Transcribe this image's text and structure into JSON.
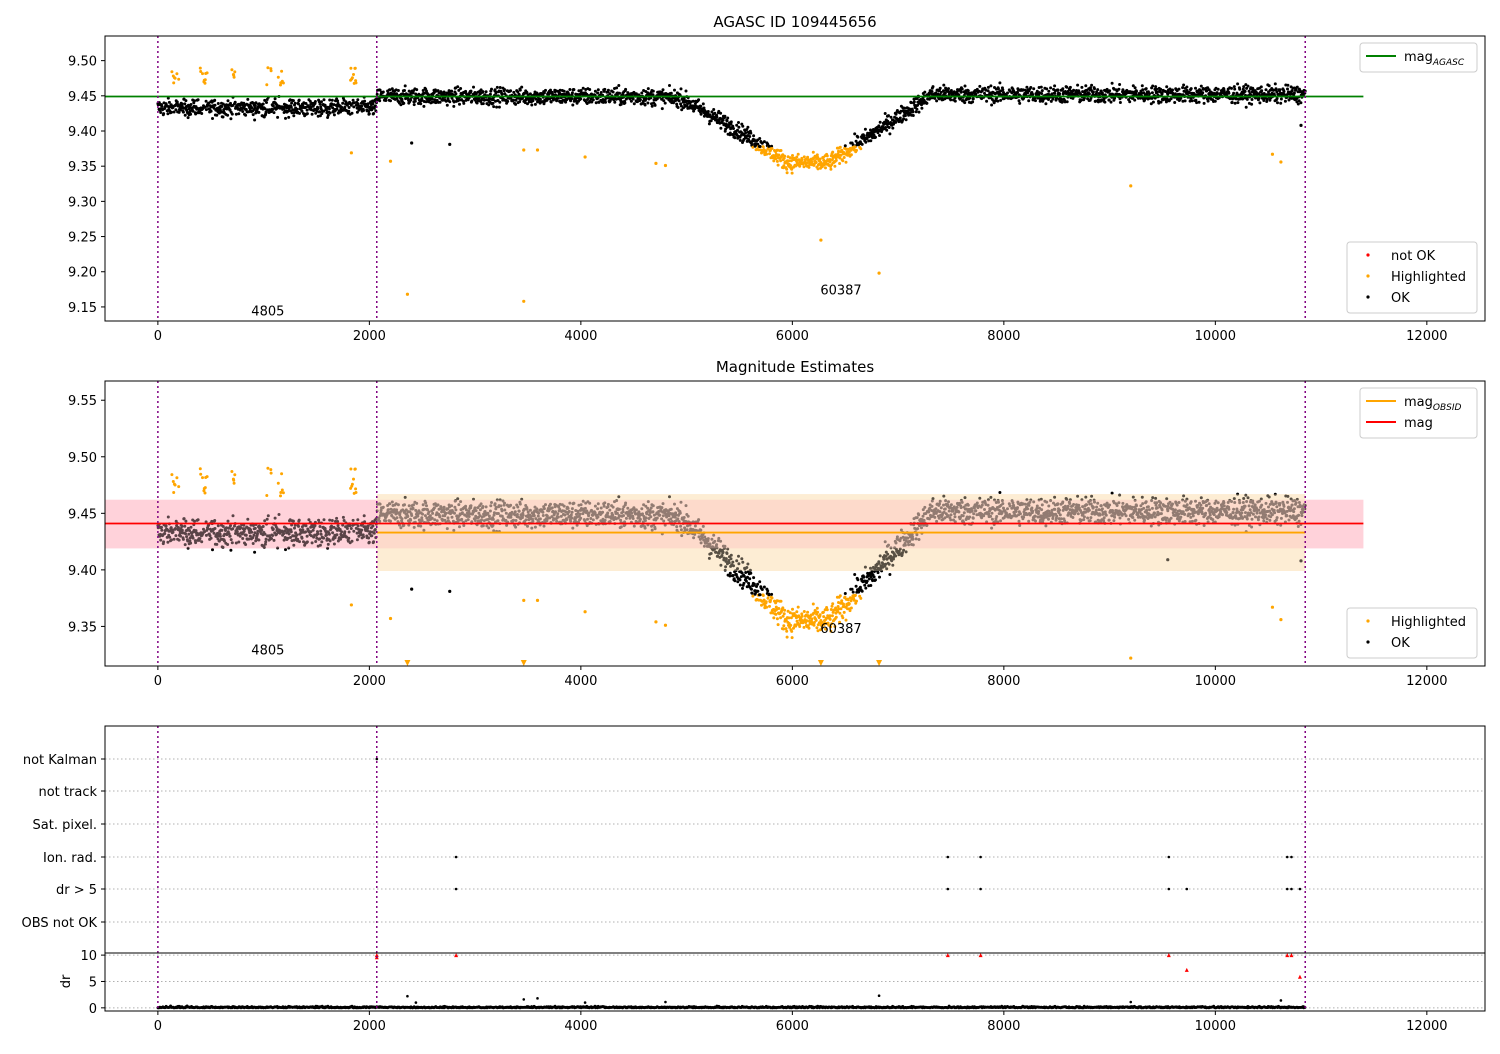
{
  "chart_data": [
    {
      "id": "agasc",
      "type": "scatter",
      "title": "AGASC ID 109445656",
      "xlim": [
        -500,
        12550
      ],
      "ylim": [
        9.13,
        9.535
      ],
      "xticks": [
        0,
        2000,
        4000,
        6000,
        8000,
        10000,
        12000
      ],
      "yticks": [
        9.15,
        9.2,
        9.25,
        9.3,
        9.35,
        9.4,
        9.45,
        9.5
      ],
      "vlines": [
        0,
        2070,
        10850
      ],
      "annotations": [
        {
          "text": "4805",
          "x": 1040,
          "y": 9.138
        },
        {
          "text": "60387",
          "x": 6460,
          "y": 9.168
        }
      ],
      "hlines": [
        {
          "name": "mag",
          "subscript": "AGASC",
          "y": 9.449,
          "x": [
            -500,
            11400
          ],
          "color": "#008000"
        }
      ],
      "legends": [
        {
          "position": "top-right",
          "entries": [
            {
              "label": "mag",
              "subscript": "AGASC",
              "kind": "line",
              "color": "#008000"
            }
          ]
        },
        {
          "position": "lower-right",
          "entries": [
            {
              "label": "not OK",
              "kind": "dot",
              "color": "#ff0000"
            },
            {
              "label": "Highlighted",
              "kind": "dot",
              "color": "#ffa500"
            },
            {
              "label": "OK",
              "kind": "dot",
              "color": "#000000"
            }
          ]
        }
      ],
      "highlighted_outliers": [
        [
          1830,
          9.369
        ],
        [
          2200,
          9.357
        ],
        [
          2360,
          9.168
        ],
        [
          3460,
          9.158
        ],
        [
          3460,
          9.373
        ],
        [
          3590,
          9.373
        ],
        [
          4040,
          9.363
        ],
        [
          4710,
          9.354
        ],
        [
          4800,
          9.351
        ],
        [
          6270,
          9.245
        ],
        [
          6820,
          9.198
        ],
        [
          9200,
          9.322
        ],
        [
          10540,
          9.367
        ],
        [
          10620,
          9.356
        ]
      ],
      "ok_outliers": [
        [
          2400,
          9.383
        ],
        [
          2760,
          9.381
        ],
        [
          10810,
          9.408
        ]
      ]
    },
    {
      "id": "mag",
      "type": "scatter",
      "title": "Magnitude Estimates",
      "xlim": [
        -500,
        12550
      ],
      "ylim": [
        9.315,
        9.567
      ],
      "xticks": [
        0,
        2000,
        4000,
        6000,
        8000,
        10000,
        12000
      ],
      "yticks": [
        9.35,
        9.4,
        9.45,
        9.5,
        9.55
      ],
      "vlines": [
        0,
        2070,
        10850
      ],
      "annotations": [
        {
          "text": "4805",
          "x": 1040,
          "y": 9.325
        },
        {
          "text": "60387",
          "x": 6460,
          "y": 9.344
        }
      ],
      "hlines": [
        {
          "name": "mag",
          "y": 9.441,
          "x": [
            -500,
            11400
          ],
          "band": [
            9.419,
            9.462
          ],
          "color": "#ff0000",
          "band_color": "#ffc0cb"
        },
        {
          "name": "mag",
          "subscript": "OBSID",
          "y": 9.433,
          "x": [
            2070,
            10850
          ],
          "band": [
            9.399,
            9.467
          ],
          "color": "#ffa500",
          "band_color": "#fde6c2"
        }
      ],
      "legends": [
        {
          "position": "top-right",
          "entries": [
            {
              "label": "mag",
              "subscript": "OBSID",
              "kind": "line",
              "color": "#ffa500"
            },
            {
              "label": "mag",
              "kind": "line",
              "color": "#ff0000"
            }
          ]
        },
        {
          "position": "lower-right",
          "entries": [
            {
              "label": "Highlighted",
              "kind": "dot",
              "color": "#ffa500"
            },
            {
              "label": "OK",
              "kind": "dot",
              "color": "#000000"
            }
          ]
        }
      ],
      "highlighted_outliers": [
        [
          1830,
          9.369
        ],
        [
          2200,
          9.357
        ],
        [
          3460,
          9.373
        ],
        [
          3590,
          9.373
        ],
        [
          4040,
          9.363
        ],
        [
          4710,
          9.354
        ],
        [
          4800,
          9.351
        ],
        [
          9200,
          9.322
        ],
        [
          10540,
          9.367
        ],
        [
          10620,
          9.356
        ]
      ],
      "clipped_markers": [
        2360,
        3460,
        6270,
        6820
      ],
      "ok_outliers": [
        [
          2400,
          9.383
        ],
        [
          2760,
          9.381
        ],
        [
          9550,
          9.409
        ],
        [
          10810,
          9.408
        ]
      ]
    },
    {
      "id": "flags",
      "type": "scatter",
      "xlim": [
        -500,
        12550
      ],
      "xticks": [
        0,
        2000,
        4000,
        6000,
        8000,
        10000,
        12000
      ],
      "vlines": [
        0,
        2070,
        10850
      ],
      "flag_rows": [
        "not Kalman",
        "not track",
        "Sat. pixel.",
        "Ion. rad.",
        "dr > 5",
        "OBS not OK"
      ],
      "flag_points": [
        {
          "row": "not Kalman",
          "x": [
            2070
          ]
        },
        {
          "row": "Ion. rad.",
          "x": [
            2820,
            7470,
            7780,
            9560,
            10680,
            10720
          ]
        },
        {
          "row": "dr > 5",
          "x": [
            2820,
            7470,
            7780,
            9560,
            9730,
            10680,
            10720,
            10800
          ]
        }
      ],
      "dr_panel": {
        "ylabel": "dr",
        "yticks": [
          0,
          5,
          10
        ],
        "ylim": [
          -0.6,
          10.4
        ],
        "threshold": 10,
        "red_markers": [
          [
            2070,
            10
          ],
          [
            2070,
            9.6
          ],
          [
            2820,
            10
          ],
          [
            7470,
            10
          ],
          [
            7780,
            10
          ],
          [
            9560,
            10
          ],
          [
            9730,
            7.2
          ],
          [
            10680,
            10
          ],
          [
            10720,
            10
          ],
          [
            10800,
            5.9
          ]
        ],
        "outliers": [
          [
            2360,
            2.2
          ],
          [
            2440,
            1.0
          ],
          [
            3460,
            1.6
          ],
          [
            3590,
            1.8
          ],
          [
            4040,
            1.0
          ],
          [
            4800,
            1.1
          ],
          [
            6820,
            2.3
          ],
          [
            9200,
            1.1
          ],
          [
            10620,
            1.4
          ]
        ]
      }
    }
  ]
}
